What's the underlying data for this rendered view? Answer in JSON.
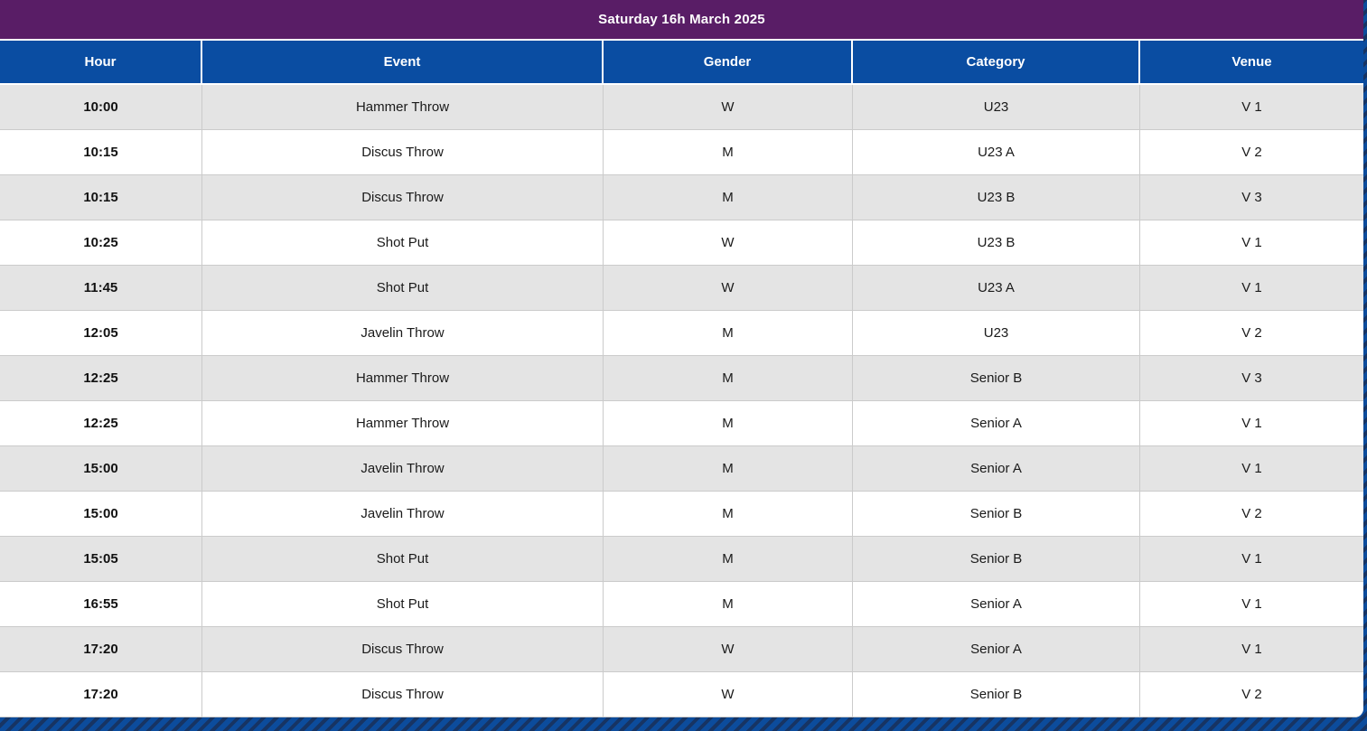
{
  "title_bar": {
    "text": "Saturday 16h March 2025",
    "background": "#591d66"
  },
  "table": {
    "header_background": "#0a4da2",
    "row_background": "#ffffff",
    "row_alt_background": "#e4e4e4",
    "columns": [
      {
        "key": "hour",
        "label": "Hour"
      },
      {
        "key": "event",
        "label": "Event"
      },
      {
        "key": "gender",
        "label": "Gender"
      },
      {
        "key": "category",
        "label": "Category"
      },
      {
        "key": "venue",
        "label": "Venue"
      }
    ],
    "rows": [
      [
        "10:00",
        "Hammer Throw",
        "W",
        "U23",
        "V 1"
      ],
      [
        "10:15",
        "Discus Throw",
        "M",
        "U23 A",
        "V 2"
      ],
      [
        "10:15",
        "Discus Throw",
        "M",
        "U23 B",
        "V 3"
      ],
      [
        "10:25",
        "Shot Put",
        "W",
        "U23 B",
        "V 1"
      ],
      [
        "11:45",
        "Shot Put",
        "W",
        "U23 A",
        "V 1"
      ],
      [
        "12:05",
        "Javelin Throw",
        "M",
        "U23",
        "V 2"
      ],
      [
        "12:25",
        "Hammer Throw",
        "M",
        "Senior B",
        "V 3"
      ],
      [
        "12:25",
        "Hammer Throw",
        "M",
        "Senior A",
        "V 1"
      ],
      [
        "15:00",
        "Javelin Throw",
        "M",
        "Senior A",
        "V 1"
      ],
      [
        "15:00",
        "Javelin Throw",
        "M",
        "Senior B",
        "V 2"
      ],
      [
        "15:05",
        "Shot Put",
        "M",
        "Senior B",
        "V 1"
      ],
      [
        "16:55",
        "Shot Put",
        "M",
        "Senior A",
        "V 1"
      ],
      [
        "17:20",
        "Discus Throw",
        "W",
        "Senior A",
        "V 1"
      ],
      [
        "17:20",
        "Discus Throw",
        "W",
        "Senior B",
        "V 2"
      ]
    ]
  },
  "page": {
    "stripe_base_color": "#0c4c9c",
    "stripe_dark_color": "#173463"
  }
}
